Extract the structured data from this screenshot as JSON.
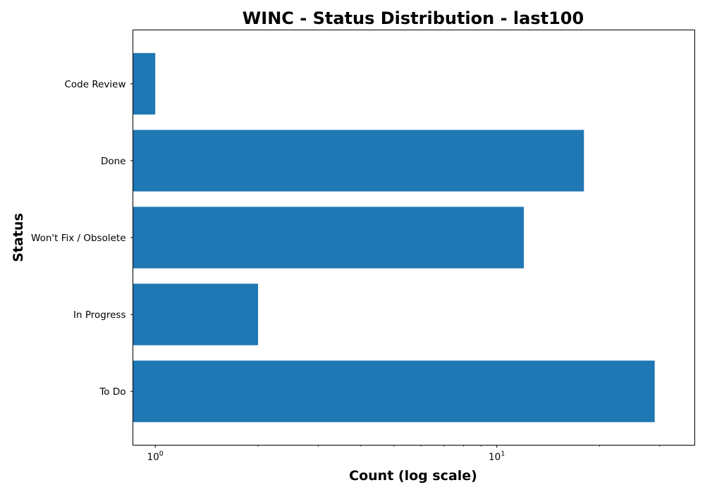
{
  "chart_data": {
    "type": "bar",
    "orientation": "horizontal",
    "title": "WINC - Status Distribution - last100",
    "xlabel": "Count (log scale)",
    "ylabel": "Status",
    "xscale": "log",
    "xlim": [
      0.86,
      38
    ],
    "categories": [
      "Code Review",
      "Done",
      "Won't Fix / Obsolete",
      "In Progress",
      "To Do"
    ],
    "values": [
      1,
      18,
      12,
      2,
      29
    ],
    "x_major_ticks": [
      {
        "base": "10",
        "exponent": "0",
        "value": 1
      },
      {
        "base": "10",
        "exponent": "1",
        "value": 10
      }
    ],
    "x_minor_ticks": [
      2,
      3,
      4,
      5,
      6,
      7,
      8,
      9,
      20,
      30
    ],
    "bar_color": "#1f77b4",
    "grid": false,
    "legend": false
  }
}
